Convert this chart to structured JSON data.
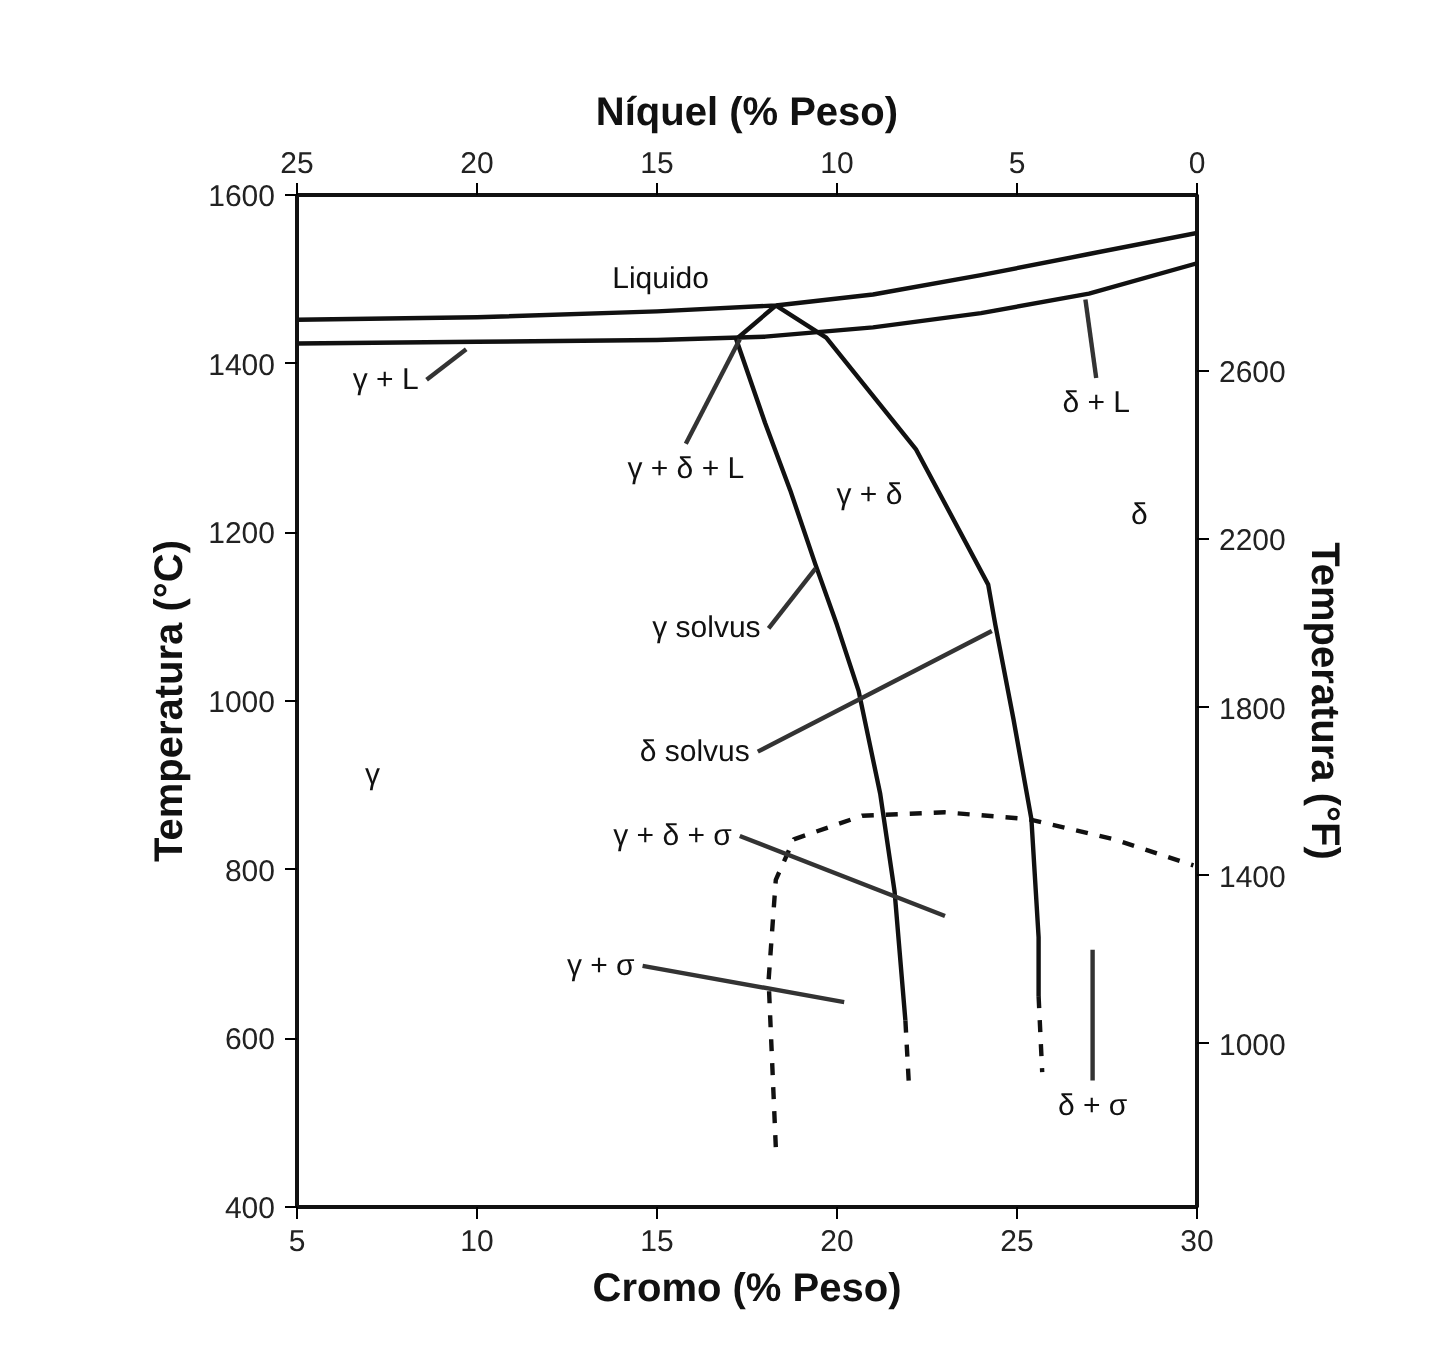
{
  "chart_data": {
    "type": "line",
    "xlabel": "Cromo (% Peso)",
    "ylabel": "Temperatura (°C)",
    "y2label": "Temperatura (°F)",
    "x2label": "Níquel (% Peso)",
    "xlim": [
      5,
      30
    ],
    "xticks": [
      5,
      10,
      15,
      20,
      25,
      30
    ],
    "ylim": [
      400,
      1600
    ],
    "yticks": [
      400,
      600,
      800,
      1000,
      1200,
      1400,
      1600
    ],
    "x2lim": [
      25,
      0
    ],
    "x2ticks": [
      25,
      20,
      15,
      10,
      5,
      0
    ],
    "y2lim": [
      612,
      3019
    ],
    "y2ticks": [
      1000,
      1400,
      1800,
      2200,
      2600
    ],
    "grid": false,
    "marker": "none",
    "series": [
      {
        "color": "#111111",
        "x": [
          5,
          10,
          15,
          18.3,
          21,
          24,
          27,
          30
        ],
        "values": [
          1452,
          1455,
          1462,
          1469,
          1482,
          1505,
          1530,
          1555
        ]
      },
      {
        "color": "#111111",
        "x": [
          5,
          10,
          15,
          18,
          21,
          24,
          27,
          30
        ],
        "values": [
          1424,
          1426,
          1428,
          1432,
          1443,
          1460,
          1483,
          1519
        ]
      },
      {
        "color": "#111111",
        "x": [
          18.3,
          17.2,
          18.0,
          18.7,
          19.4,
          20.0,
          20.6,
          21.2,
          21.6,
          21.9
        ],
        "values": [
          1469,
          1429,
          1330,
          1250,
          1162,
          1090,
          1012,
          890,
          774,
          621
        ]
      },
      {
        "color": "#111111",
        "line_style": "dashed",
        "x": [
          21.9,
          22.0
        ],
        "values": [
          621,
          543
        ]
      },
      {
        "color": "#111111",
        "x": [
          18.3,
          19.7,
          22.2,
          24.2,
          24.4,
          24.9,
          25.4,
          25.6,
          25.6
        ],
        "values": [
          1469,
          1431,
          1298,
          1138,
          1090,
          979,
          860,
          720,
          650
        ]
      },
      {
        "color": "#111111",
        "line_style": "dashed",
        "x": [
          25.6,
          25.7
        ],
        "values": [
          650,
          560
        ]
      },
      {
        "color": "#111111",
        "line_style": "dashed",
        "x": [
          18.3,
          18.1,
          18.3,
          18.8,
          20.7,
          23.0,
          25.3,
          27.7,
          29.9
        ],
        "values": [
          471,
          669,
          788,
          836,
          864,
          868,
          860,
          836,
          805
        ]
      },
      {
        "color": "#333333",
        "x": [
          9.7,
          8.6
        ],
        "values": [
          1417,
          1381
        ]
      },
      {
        "color": "#333333",
        "x": [
          15.8,
          17.3
        ],
        "values": [
          1305,
          1429
        ]
      },
      {
        "color": "#333333",
        "x": [
          26.9,
          27.2
        ],
        "values": [
          1476,
          1383
        ]
      },
      {
        "color": "#333333",
        "x": [
          18.1,
          19.4
        ],
        "values": [
          1086,
          1157
        ]
      },
      {
        "color": "#333333",
        "x": [
          17.8,
          24.3
        ],
        "values": [
          940,
          1083
        ]
      },
      {
        "color": "#333333",
        "x": [
          17.3,
          23.0
        ],
        "values": [
          840,
          745
        ]
      },
      {
        "color": "#333333",
        "x": [
          14.6,
          20.2
        ],
        "values": [
          686,
          643
        ]
      },
      {
        "color": "#333333",
        "x": [
          27.1,
          27.1
        ],
        "values": [
          705,
          550
        ]
      }
    ],
    "annotations": [
      "Liquido",
      {
        "text": "γ + L",
        "x": 8.6,
        "y": 1381
      },
      {
        "text": "γ + δ + L",
        "x": 15.8,
        "y": 1305
      },
      "γ + δ",
      {
        "text": "δ + L",
        "x": 27.2,
        "y": 1383
      },
      "δ",
      {
        "text": "γ solvus",
        "x": 18.1,
        "y": 1086
      },
      {
        "text": "δ solvus",
        "x": 17.8,
        "y": 940
      },
      "γ",
      {
        "text": "γ + δ + σ",
        "x": 17.3,
        "y": 840
      },
      {
        "text": "γ + σ",
        "x": 14.6,
        "y": 686
      },
      {
        "text": "δ + σ",
        "x": 27.1,
        "y": 550
      }
    ]
  }
}
